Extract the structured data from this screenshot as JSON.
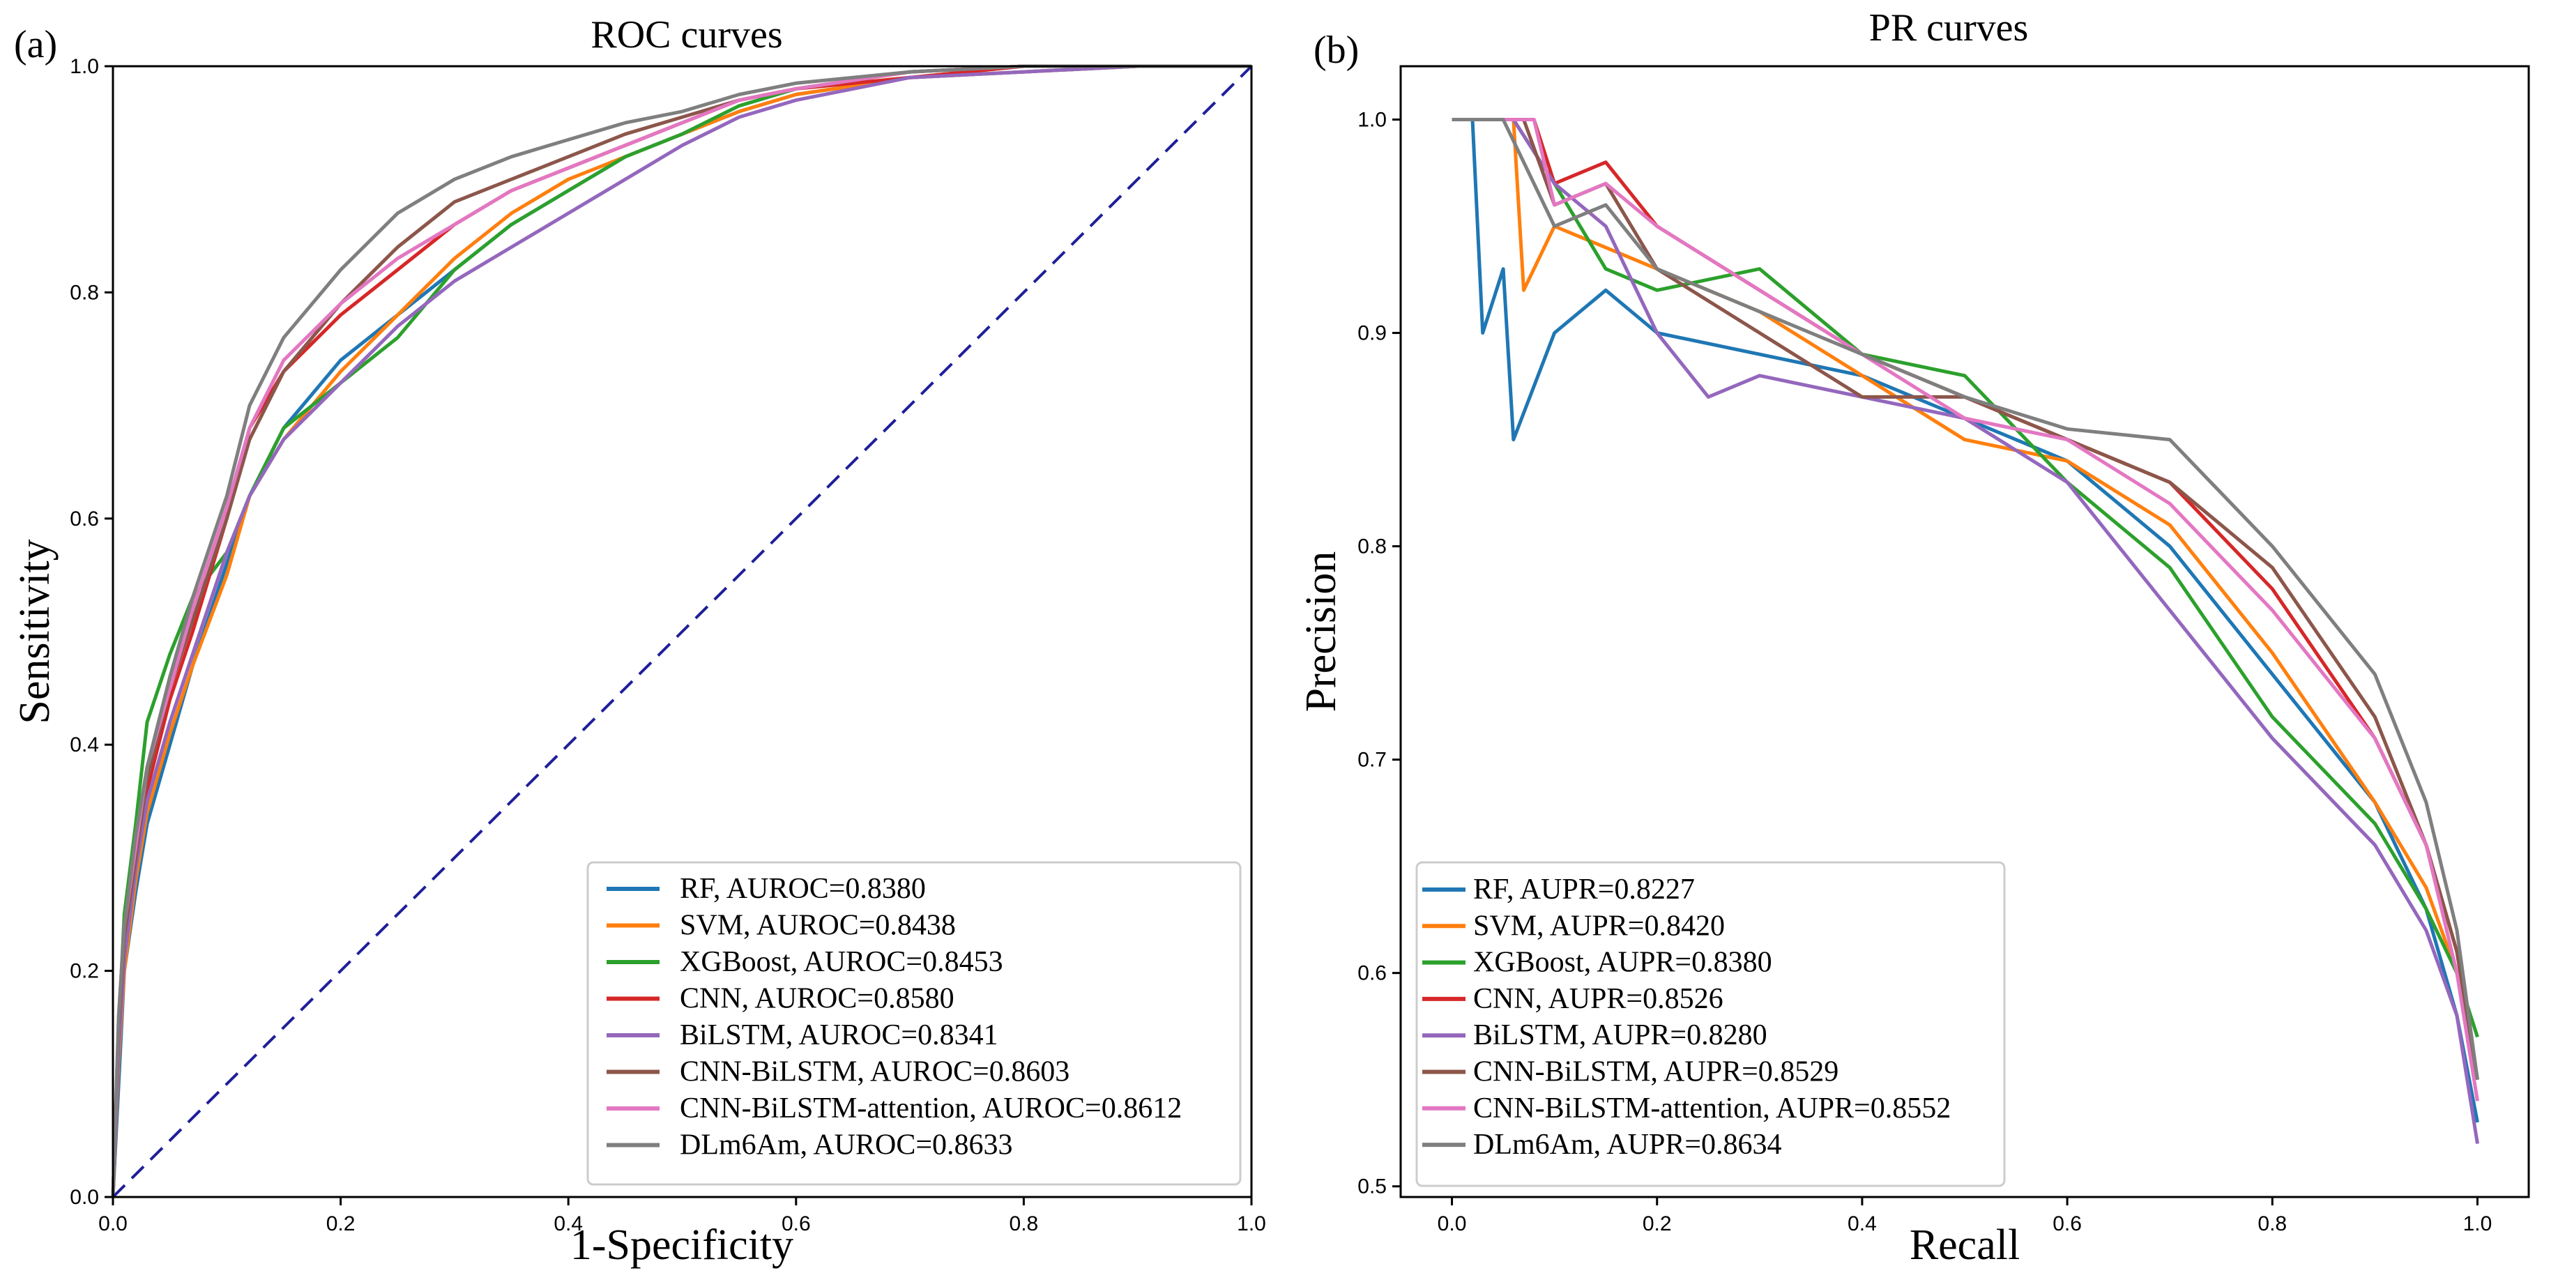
{
  "chart_data": [
    {
      "panel_label": "(a)",
      "type": "line",
      "title": "ROC curves",
      "xlabel": "1-Specificity",
      "ylabel": "Sensitivity",
      "xlim": [
        0.0,
        1.0
      ],
      "ylim": [
        0.0,
        1.0
      ],
      "xticks": [
        "0.0",
        "0.2",
        "0.4",
        "0.6",
        "0.8",
        "1.0"
      ],
      "yticks": [
        "0.0",
        "0.2",
        "0.4",
        "0.6",
        "0.8",
        "1.0"
      ],
      "grid": false,
      "legend_position": "lower-right",
      "reference_line": {
        "from": [
          0,
          0
        ],
        "to": [
          1,
          1
        ],
        "style": "dashed",
        "color": "#1f1f9a"
      },
      "series": [
        {
          "name": "RF",
          "label": "RF, AUROC=0.8380",
          "color": "#1f77b4",
          "x": [
            0,
            0.005,
            0.01,
            0.02,
            0.03,
            0.05,
            0.07,
            0.1,
            0.12,
            0.15,
            0.2,
            0.25,
            0.3,
            0.35,
            0.4,
            0.45,
            0.5,
            0.55,
            0.6,
            0.7,
            0.8,
            0.9,
            1.0
          ],
          "y": [
            0,
            0.1,
            0.2,
            0.27,
            0.33,
            0.4,
            0.47,
            0.56,
            0.62,
            0.68,
            0.74,
            0.78,
            0.82,
            0.86,
            0.89,
            0.92,
            0.94,
            0.96,
            0.975,
            0.99,
            0.995,
            1.0,
            1.0
          ]
        },
        {
          "name": "SVM",
          "label": "SVM, AUROC=0.8438",
          "color": "#ff7f0e",
          "x": [
            0,
            0.005,
            0.01,
            0.02,
            0.03,
            0.05,
            0.07,
            0.1,
            0.12,
            0.15,
            0.2,
            0.25,
            0.3,
            0.35,
            0.4,
            0.45,
            0.5,
            0.55,
            0.6,
            0.7,
            0.8,
            0.9,
            1.0
          ],
          "y": [
            0,
            0.12,
            0.2,
            0.28,
            0.34,
            0.41,
            0.47,
            0.55,
            0.62,
            0.67,
            0.73,
            0.78,
            0.83,
            0.87,
            0.9,
            0.92,
            0.94,
            0.96,
            0.975,
            0.99,
            0.995,
            1.0,
            1.0
          ]
        },
        {
          "name": "XGBoost",
          "label": "XGBoost, AUROC=0.8453",
          "color": "#2ca02c",
          "x": [
            0,
            0.005,
            0.01,
            0.02,
            0.03,
            0.05,
            0.07,
            0.1,
            0.12,
            0.15,
            0.2,
            0.25,
            0.3,
            0.35,
            0.4,
            0.45,
            0.5,
            0.55,
            0.6,
            0.7,
            0.8,
            0.9,
            1.0
          ],
          "y": [
            0,
            0.15,
            0.25,
            0.33,
            0.42,
            0.48,
            0.53,
            0.57,
            0.62,
            0.68,
            0.72,
            0.76,
            0.82,
            0.86,
            0.89,
            0.92,
            0.94,
            0.965,
            0.98,
            0.995,
            1.0,
            1.0,
            1.0
          ]
        },
        {
          "name": "CNN",
          "label": "CNN, AUROC=0.8580",
          "color": "#d62728",
          "x": [
            0,
            0.005,
            0.01,
            0.02,
            0.03,
            0.05,
            0.07,
            0.1,
            0.12,
            0.15,
            0.2,
            0.25,
            0.3,
            0.35,
            0.4,
            0.45,
            0.5,
            0.55,
            0.6,
            0.7,
            0.8,
            0.9,
            1.0
          ],
          "y": [
            0,
            0.14,
            0.22,
            0.3,
            0.36,
            0.44,
            0.5,
            0.6,
            0.68,
            0.73,
            0.78,
            0.82,
            0.86,
            0.89,
            0.91,
            0.93,
            0.95,
            0.97,
            0.98,
            0.99,
            1.0,
            1.0,
            1.0
          ]
        },
        {
          "name": "BiLSTM",
          "label": "BiLSTM, AUROC=0.8341",
          "color": "#9467bd",
          "x": [
            0,
            0.005,
            0.01,
            0.02,
            0.03,
            0.05,
            0.07,
            0.1,
            0.12,
            0.15,
            0.2,
            0.25,
            0.3,
            0.35,
            0.4,
            0.45,
            0.5,
            0.55,
            0.6,
            0.7,
            0.8,
            0.9,
            1.0
          ],
          "y": [
            0,
            0.13,
            0.21,
            0.29,
            0.35,
            0.42,
            0.48,
            0.57,
            0.62,
            0.67,
            0.72,
            0.77,
            0.81,
            0.84,
            0.87,
            0.9,
            0.93,
            0.955,
            0.97,
            0.99,
            0.995,
            1.0,
            1.0
          ]
        },
        {
          "name": "CNN-BiLSTM",
          "label": "CNN-BiLSTM, AUROC=0.8603",
          "color": "#8c564b",
          "x": [
            0,
            0.005,
            0.01,
            0.02,
            0.03,
            0.05,
            0.07,
            0.1,
            0.12,
            0.15,
            0.2,
            0.25,
            0.3,
            0.35,
            0.4,
            0.45,
            0.5,
            0.55,
            0.6,
            0.7,
            0.8,
            0.9,
            1.0
          ],
          "y": [
            0,
            0.15,
            0.23,
            0.3,
            0.37,
            0.45,
            0.51,
            0.6,
            0.67,
            0.73,
            0.79,
            0.84,
            0.88,
            0.9,
            0.92,
            0.94,
            0.955,
            0.97,
            0.98,
            0.995,
            1.0,
            1.0,
            1.0
          ]
        },
        {
          "name": "CNN-BiLSTM-attention",
          "label": "CNN-BiLSTM-attention, AUROC=0.8612",
          "color": "#e377c2",
          "x": [
            0,
            0.005,
            0.01,
            0.02,
            0.03,
            0.05,
            0.07,
            0.1,
            0.12,
            0.15,
            0.2,
            0.25,
            0.3,
            0.35,
            0.4,
            0.45,
            0.5,
            0.55,
            0.6,
            0.7,
            0.8,
            0.9,
            1.0
          ],
          "y": [
            0,
            0.16,
            0.24,
            0.31,
            0.38,
            0.45,
            0.52,
            0.61,
            0.68,
            0.74,
            0.79,
            0.83,
            0.86,
            0.89,
            0.91,
            0.93,
            0.95,
            0.97,
            0.98,
            0.995,
            1.0,
            1.0,
            1.0
          ]
        },
        {
          "name": "DLm6Am",
          "label": "DLm6Am, AUROC=0.8633",
          "color": "#7f7f7f",
          "x": [
            0,
            0.005,
            0.01,
            0.02,
            0.03,
            0.05,
            0.07,
            0.1,
            0.12,
            0.15,
            0.2,
            0.25,
            0.3,
            0.35,
            0.4,
            0.45,
            0.5,
            0.55,
            0.6,
            0.7,
            0.8,
            0.9,
            1.0
          ],
          "y": [
            0,
            0.16,
            0.24,
            0.32,
            0.38,
            0.46,
            0.53,
            0.62,
            0.7,
            0.76,
            0.82,
            0.87,
            0.9,
            0.92,
            0.935,
            0.95,
            0.96,
            0.975,
            0.985,
            0.995,
            1.0,
            1.0,
            1.0
          ]
        }
      ]
    },
    {
      "panel_label": "(b)",
      "type": "line",
      "title": "PR curves",
      "xlabel": "Recall",
      "ylabel": "Precision",
      "xlim": [
        -0.05,
        1.05
      ],
      "ylim": [
        0.495,
        1.025
      ],
      "xticks": [
        "0.0",
        "0.2",
        "0.4",
        "0.6",
        "0.8",
        "1.0"
      ],
      "yticks": [
        "0.5",
        "0.6",
        "0.7",
        "0.8",
        "0.9",
        "1.0"
      ],
      "grid": false,
      "legend_position": "lower-left",
      "series": [
        {
          "name": "RF",
          "label": "RF, AUPR=0.8227",
          "color": "#1f77b4",
          "x": [
            0,
            0.02,
            0.03,
            0.05,
            0.06,
            0.1,
            0.15,
            0.2,
            0.3,
            0.4,
            0.5,
            0.6,
            0.7,
            0.8,
            0.9,
            0.95,
            0.98,
            1.0
          ],
          "y": [
            1.0,
            1.0,
            0.9,
            0.93,
            0.85,
            0.9,
            0.92,
            0.9,
            0.89,
            0.88,
            0.86,
            0.84,
            0.8,
            0.74,
            0.68,
            0.63,
            0.58,
            0.53
          ]
        },
        {
          "name": "SVM",
          "label": "SVM, AUPR=0.8420",
          "color": "#ff7f0e",
          "x": [
            0,
            0.06,
            0.07,
            0.1,
            0.15,
            0.2,
            0.3,
            0.4,
            0.5,
            0.6,
            0.7,
            0.8,
            0.9,
            0.95,
            0.98,
            1.0
          ],
          "y": [
            1.0,
            1.0,
            0.92,
            0.95,
            0.94,
            0.93,
            0.91,
            0.88,
            0.85,
            0.84,
            0.81,
            0.75,
            0.68,
            0.64,
            0.6,
            0.55
          ]
        },
        {
          "name": "XGBoost",
          "label": "XGBoost, AUPR=0.8380",
          "color": "#2ca02c",
          "x": [
            0,
            0.06,
            0.1,
            0.15,
            0.2,
            0.3,
            0.4,
            0.5,
            0.6,
            0.7,
            0.8,
            0.9,
            0.95,
            0.98,
            1.0
          ],
          "y": [
            1.0,
            1.0,
            0.97,
            0.93,
            0.92,
            0.93,
            0.89,
            0.88,
            0.83,
            0.79,
            0.72,
            0.67,
            0.63,
            0.6,
            0.57
          ]
        },
        {
          "name": "CNN",
          "label": "CNN, AUPR=0.8526",
          "color": "#d62728",
          "x": [
            0,
            0.08,
            0.1,
            0.15,
            0.2,
            0.3,
            0.4,
            0.5,
            0.6,
            0.7,
            0.8,
            0.9,
            0.95,
            0.98,
            1.0
          ],
          "y": [
            1.0,
            1.0,
            0.97,
            0.98,
            0.95,
            0.92,
            0.89,
            0.87,
            0.85,
            0.83,
            0.78,
            0.71,
            0.66,
            0.61,
            0.55
          ]
        },
        {
          "name": "BiLSTM",
          "label": "BiLSTM, AUPR=0.8280",
          "color": "#9467bd",
          "x": [
            0,
            0.06,
            0.1,
            0.15,
            0.2,
            0.25,
            0.3,
            0.4,
            0.5,
            0.6,
            0.7,
            0.8,
            0.9,
            0.95,
            0.98,
            1.0
          ],
          "y": [
            1.0,
            1.0,
            0.97,
            0.95,
            0.9,
            0.87,
            0.88,
            0.87,
            0.86,
            0.83,
            0.77,
            0.71,
            0.66,
            0.62,
            0.58,
            0.52
          ]
        },
        {
          "name": "CNN-BiLSTM",
          "label": "CNN-BiLSTM, AUPR=0.8529",
          "color": "#8c564b",
          "x": [
            0,
            0.07,
            0.1,
            0.15,
            0.2,
            0.3,
            0.4,
            0.5,
            0.6,
            0.7,
            0.8,
            0.9,
            0.95,
            0.98,
            1.0
          ],
          "y": [
            1.0,
            1.0,
            0.96,
            0.97,
            0.93,
            0.9,
            0.87,
            0.87,
            0.85,
            0.83,
            0.79,
            0.72,
            0.66,
            0.61,
            0.55
          ]
        },
        {
          "name": "CNN-BiLSTM-attention",
          "label": "CNN-BiLSTM-attention, AUPR=0.8552",
          "color": "#e377c2",
          "x": [
            0,
            0.08,
            0.1,
            0.15,
            0.2,
            0.3,
            0.4,
            0.5,
            0.6,
            0.7,
            0.8,
            0.9,
            0.95,
            0.98,
            1.0
          ],
          "y": [
            1.0,
            1.0,
            0.96,
            0.97,
            0.95,
            0.92,
            0.89,
            0.86,
            0.85,
            0.82,
            0.77,
            0.71,
            0.66,
            0.6,
            0.54
          ]
        },
        {
          "name": "DLm6Am",
          "label": "DLm6Am, AUPR=0.8634",
          "color": "#7f7f7f",
          "x": [
            0,
            0.05,
            0.1,
            0.15,
            0.2,
            0.3,
            0.4,
            0.5,
            0.6,
            0.7,
            0.8,
            0.9,
            0.95,
            0.98,
            1.0
          ],
          "y": [
            1.0,
            1.0,
            0.95,
            0.96,
            0.93,
            0.91,
            0.89,
            0.87,
            0.855,
            0.85,
            0.8,
            0.74,
            0.68,
            0.62,
            0.55
          ]
        }
      ]
    }
  ]
}
